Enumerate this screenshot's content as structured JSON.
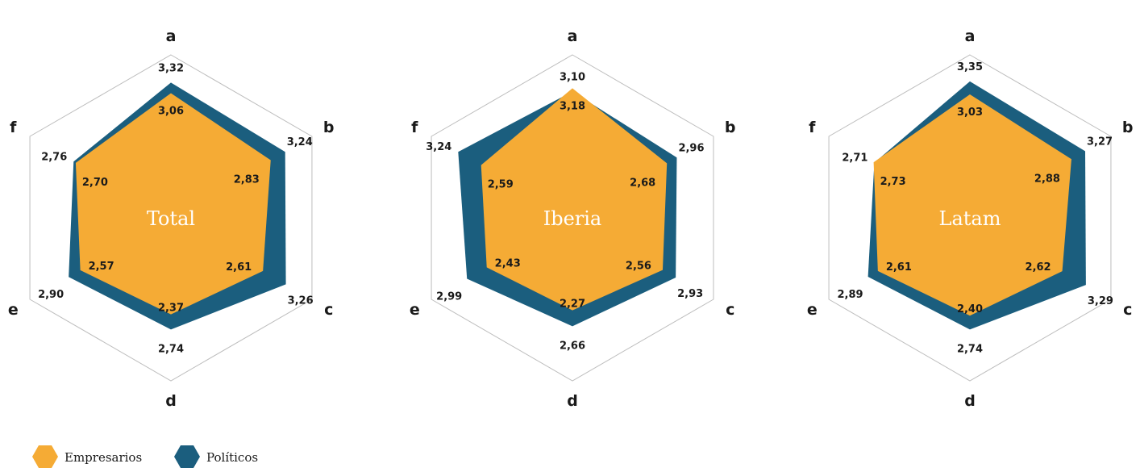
{
  "axes": [
    "a",
    "b",
    "c",
    "d",
    "e",
    "f"
  ],
  "colors": {
    "empresarios": "#F5AB35",
    "politicos": "#1B5E7E",
    "grid": "#bdbdbd"
  },
  "legend": [
    {
      "name": "Empresarios",
      "color": "#F5AB35"
    },
    {
      "name": "Políticos",
      "color": "#1B5E7E"
    }
  ],
  "chart_data": [
    {
      "type": "radar",
      "title": "Total",
      "axes": [
        "a",
        "b",
        "c",
        "d",
        "e",
        "f"
      ],
      "rlim": [
        0,
        4
      ],
      "series": [
        {
          "name": "Políticos",
          "values": [
            3.32,
            3.24,
            3.26,
            2.74,
            2.9,
            2.76
          ],
          "labels": [
            "3,32",
            "3,24",
            "3,26",
            "2,74",
            "2,90",
            "2,76"
          ]
        },
        {
          "name": "Empresarios",
          "values": [
            3.06,
            2.83,
            2.61,
            2.37,
            2.57,
            2.7
          ],
          "labels": [
            "3,06",
            "2,83",
            "2,61",
            "2,37",
            "2,57",
            "2,70"
          ]
        }
      ]
    },
    {
      "type": "radar",
      "title": "Iberia",
      "axes": [
        "a",
        "b",
        "c",
        "d",
        "e",
        "f"
      ],
      "rlim": [
        0,
        4
      ],
      "series": [
        {
          "name": "Políticos",
          "values": [
            3.1,
            2.96,
            2.93,
            2.66,
            2.99,
            3.24
          ],
          "labels": [
            "3,10",
            "2,96",
            "2,93",
            "2,66",
            "2,99",
            "3,24"
          ]
        },
        {
          "name": "Empresarios",
          "values": [
            3.18,
            2.68,
            2.56,
            2.27,
            2.43,
            2.59
          ],
          "labels": [
            "3,18",
            "2,68",
            "2,56",
            "2,27",
            "2,43",
            "2,59"
          ]
        }
      ]
    },
    {
      "type": "radar",
      "title": "Latam",
      "axes": [
        "a",
        "b",
        "c",
        "d",
        "e",
        "f"
      ],
      "rlim": [
        0,
        4
      ],
      "series": [
        {
          "name": "Políticos",
          "values": [
            3.35,
            3.27,
            3.29,
            2.74,
            2.89,
            2.71
          ],
          "labels": [
            "3,35",
            "3,27",
            "3,29",
            "2,74",
            "2,89",
            "2,71"
          ]
        },
        {
          "name": "Empresarios",
          "values": [
            3.03,
            2.88,
            2.62,
            2.4,
            2.61,
            2.73
          ],
          "labels": [
            "3,03",
            "2,88",
            "2,62",
            "2,40",
            "2,61",
            "2,73"
          ]
        }
      ]
    }
  ]
}
